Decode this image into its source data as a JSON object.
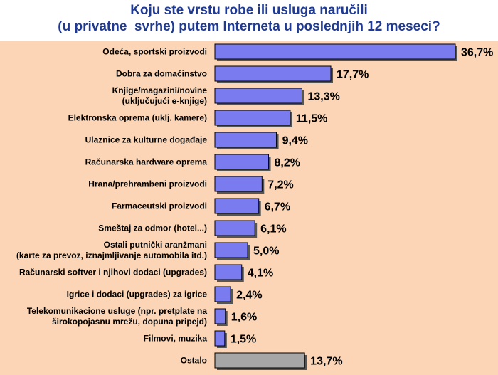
{
  "chart_data": {
    "type": "bar",
    "orientation": "horizontal",
    "title": [
      "Koju ste vrstu robe ili usluga naručili",
      "(u privatne  svrhe) putem Interneta u poslednjih 12 meseci?"
    ],
    "categories": [
      [
        "Odeća, sportski proizvodi"
      ],
      [
        "Dobra za domaćinstvo"
      ],
      [
        "Knjige/magazini/novine",
        "(uključujući e-knjige)"
      ],
      [
        "Elektronska oprema (uklj. kamere)"
      ],
      [
        "Ulaznice za kulturne događaje"
      ],
      [
        "Računarska hardware oprema"
      ],
      [
        "Hrana/prehrambeni proizvodi"
      ],
      [
        "Farmaceutski proizvodi"
      ],
      [
        "Smeštaj za odmor (hotel...)"
      ],
      [
        "Ostali putnički aranžmani",
        "(karte za prevoz, iznajmljivanje automobila itd.)"
      ],
      [
        "Računarski softver i njihovi dodaci (upgrades)"
      ],
      [
        "Igrice i dodaci (upgrades) za igrice"
      ],
      [
        "Telekomunikacione usluge (npr. pretplate na",
        "širokopojasnu mrežu, dopuna pripejd)"
      ],
      [
        "Filmovi, muzika"
      ],
      [
        "Ostalo"
      ]
    ],
    "values": [
      36.7,
      17.7,
      13.3,
      11.5,
      9.4,
      8.2,
      7.2,
      6.7,
      6.1,
      5.0,
      4.1,
      2.4,
      1.6,
      1.5,
      13.7
    ],
    "value_labels": [
      "36,7%",
      "17,7%",
      "13,3%",
      "11,5%",
      "9,4%",
      "8,2%",
      "7,2%",
      "6,7%",
      "6,1%",
      "5,0%",
      "4,1%",
      "2,4%",
      "1,6%",
      "1,5%",
      "13,7%"
    ],
    "xlim": [
      0,
      36.7
    ],
    "grid": false,
    "legend": "none",
    "colors": {
      "bar": "#7b7bf0",
      "bar_other": "#a6a6a6",
      "plot_background": "#fbd5b5",
      "title": "#1f3a93"
    }
  }
}
